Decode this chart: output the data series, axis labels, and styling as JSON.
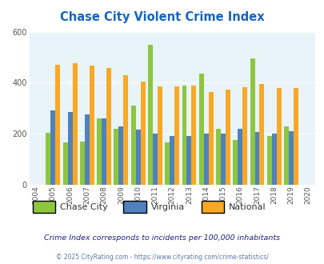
{
  "title": "Chase City Violent Crime Index",
  "years": [
    2004,
    2005,
    2006,
    2007,
    2008,
    2009,
    2010,
    2011,
    2012,
    2013,
    2014,
    2015,
    2016,
    2017,
    2018,
    2019,
    2020
  ],
  "chase_city": [
    null,
    205,
    165,
    170,
    260,
    220,
    310,
    548,
    165,
    390,
    435,
    220,
    175,
    495,
    190,
    230,
    null
  ],
  "virginia": [
    null,
    290,
    285,
    275,
    260,
    228,
    215,
    200,
    190,
    192,
    200,
    200,
    218,
    208,
    202,
    210,
    null
  ],
  "national": [
    null,
    470,
    475,
    467,
    458,
    430,
    405,
    387,
    387,
    390,
    365,
    373,
    383,
    395,
    380,
    379,
    null
  ],
  "chase_city_color": "#8dc63f",
  "virginia_color": "#4f81bd",
  "national_color": "#f9a825",
  "bg_color": "#e8f4f8",
  "ylim": [
    0,
    600
  ],
  "yticks": [
    0,
    200,
    400,
    600
  ],
  "subtitle": "Crime Index corresponds to incidents per 100,000 inhabitants",
  "footer": "© 2025 CityRating.com - https://www.cityrating.com/crime-statistics/",
  "title_color": "#1565c0",
  "subtitle_color": "#1a237e",
  "footer_color": "#5c7a9e",
  "bar_width": 0.28
}
